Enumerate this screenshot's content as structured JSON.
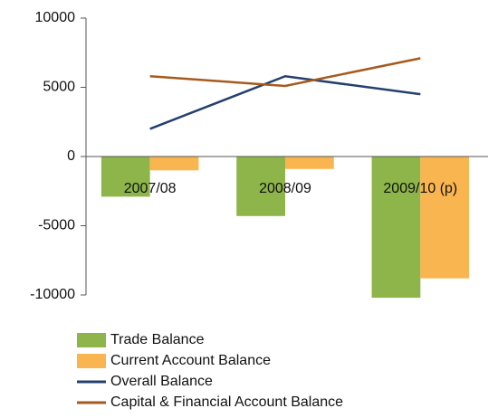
{
  "chart_data": {
    "type": "bar",
    "categories": [
      "2007/08",
      "2008/09",
      "2009/10 (p)"
    ],
    "series": [
      {
        "name": "Trade Balance",
        "type": "bar",
        "color": "#8db54a",
        "values": [
          -2900,
          -4300,
          -10200
        ]
      },
      {
        "name": "Current Account Balance",
        "type": "bar",
        "color": "#f9b54f",
        "values": [
          -1000,
          -900,
          -8800
        ]
      },
      {
        "name": "Overall Balance",
        "type": "line",
        "color": "#24406e",
        "values": [
          2000,
          5800,
          4500
        ]
      },
      {
        "name": "Capital & Financial Account Balance",
        "type": "line",
        "color": "#a65a1e",
        "values": [
          5800,
          5100,
          7100
        ]
      }
    ],
    "ylim": [
      -10000,
      10000
    ],
    "yticks": [
      -10000,
      -5000,
      0,
      5000,
      10000
    ],
    "grid": false,
    "legend": "bottom"
  }
}
